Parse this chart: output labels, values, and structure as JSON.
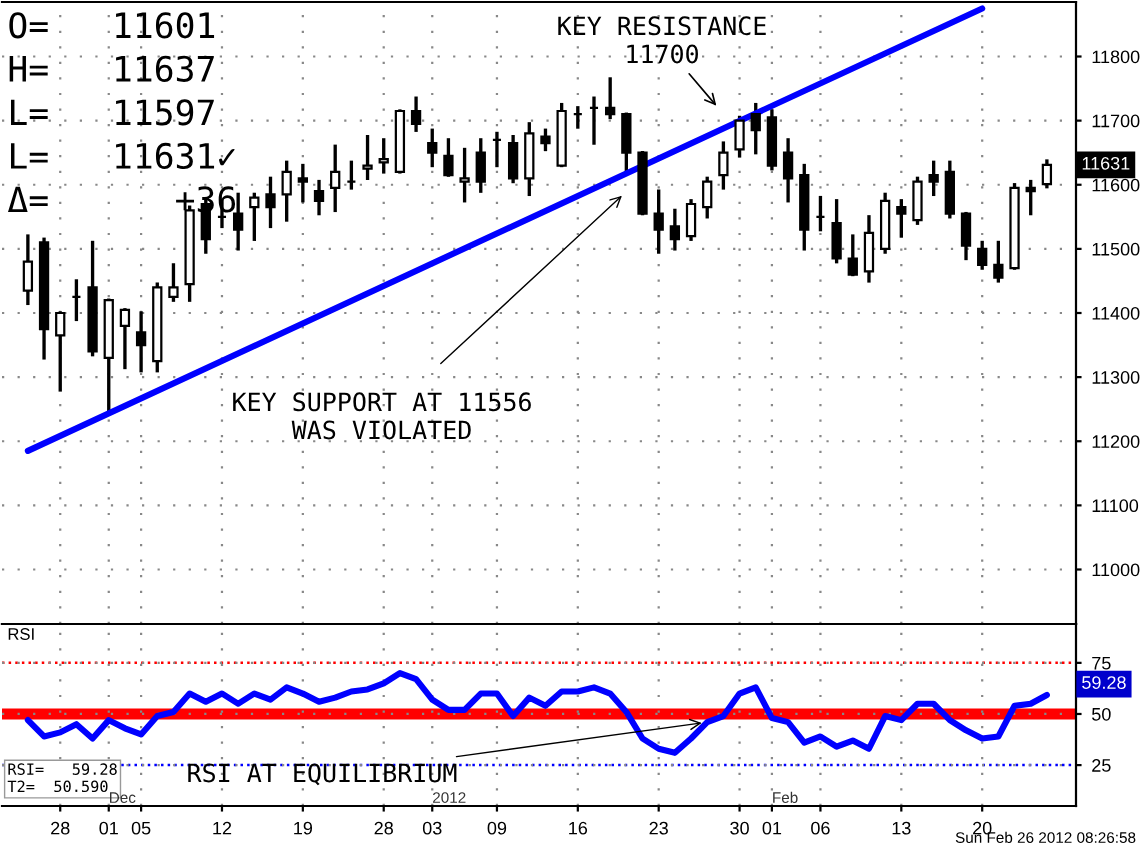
{
  "chart_data": [
    {
      "type": "candlestick",
      "tick_labels": "y",
      "grid": true,
      "legend": false,
      "color": "#000000",
      "categories": [
        null,
        null,
        "28",
        null,
        null,
        "01",
        null,
        "05",
        null,
        null,
        null,
        null,
        "12",
        null,
        null,
        null,
        null,
        "19",
        null,
        null,
        null,
        null,
        "28",
        null,
        null,
        "03",
        null,
        null,
        null,
        "09",
        null,
        null,
        null,
        null,
        "16",
        null,
        null,
        null,
        null,
        "23",
        null,
        null,
        null,
        null,
        "30",
        null,
        "01",
        null,
        null,
        "06",
        null,
        null,
        null,
        null,
        "13",
        null,
        null,
        null,
        null,
        "20",
        null,
        null,
        null,
        null
      ],
      "ohlc": [
        [
          11435,
          11520,
          11415,
          11480
        ],
        [
          11510,
          11515,
          11330,
          11375
        ],
        [
          11365,
          11400,
          11280,
          11400
        ],
        [
          11425,
          11450,
          11390,
          11425
        ],
        [
          11440,
          11510,
          11335,
          11340
        ],
        [
          11330,
          11420,
          11245,
          11420
        ],
        [
          11380,
          11405,
          11315,
          11405
        ],
        [
          11370,
          11400,
          11310,
          11350
        ],
        [
          11325,
          11445,
          11310,
          11440
        ],
        [
          11425,
          11475,
          11420,
          11440
        ],
        [
          11445,
          11565,
          11420,
          11560
        ],
        [
          11570,
          11575,
          11495,
          11515
        ],
        [
          11550,
          11575,
          11535,
          11550
        ],
        [
          11555,
          11585,
          11500,
          11530
        ],
        [
          11565,
          11585,
          11515,
          11580
        ],
        [
          11585,
          11610,
          11535,
          11565
        ],
        [
          11585,
          11635,
          11545,
          11620
        ],
        [
          11610,
          11630,
          11575,
          11605
        ],
        [
          11590,
          11605,
          11555,
          11575
        ],
        [
          11595,
          11660,
          11560,
          11620
        ],
        [
          11605,
          11635,
          11595,
          11605
        ],
        [
          11625,
          11675,
          11610,
          11630
        ],
        [
          11635,
          11670,
          11620,
          11640
        ],
        [
          11620,
          11715,
          11620,
          11715
        ],
        [
          11715,
          11735,
          11685,
          11695
        ],
        [
          11665,
          11685,
          11630,
          11650
        ],
        [
          11645,
          11670,
          11615,
          11615
        ],
        [
          11605,
          11655,
          11575,
          11610
        ],
        [
          11650,
          11670,
          11590,
          11605
        ],
        [
          11670,
          11680,
          11630,
          11670
        ],
        [
          11665,
          11675,
          11605,
          11610
        ],
        [
          11610,
          11695,
          11585,
          11680
        ],
        [
          11675,
          11685,
          11655,
          11665
        ],
        [
          11630,
          11725,
          11630,
          11715
        ],
        [
          11710,
          11720,
          11690,
          11710
        ],
        [
          11720,
          11735,
          11665,
          11720
        ],
        [
          11720,
          11765,
          11705,
          11710
        ],
        [
          11710,
          11710,
          11620,
          11650
        ],
        [
          11650,
          11650,
          11555,
          11555
        ],
        [
          11555,
          11590,
          11495,
          11530
        ],
        [
          11535,
          11560,
          11500,
          11515
        ],
        [
          11520,
          11575,
          11515,
          11570
        ],
        [
          11565,
          11610,
          11550,
          11605
        ],
        [
          11615,
          11665,
          11595,
          11650
        ],
        [
          11655,
          11705,
          11645,
          11700
        ],
        [
          11710,
          11725,
          11650,
          11685
        ],
        [
          11705,
          11715,
          11625,
          11630
        ],
        [
          11650,
          11670,
          11575,
          11610
        ],
        [
          11615,
          11630,
          11500,
          11530
        ],
        [
          11550,
          11580,
          11530,
          11550
        ],
        [
          11540,
          11575,
          11480,
          11485
        ],
        [
          11485,
          11520,
          11460,
          11460
        ],
        [
          11465,
          11550,
          11450,
          11525
        ],
        [
          11500,
          11585,
          11495,
          11575
        ],
        [
          11565,
          11575,
          11520,
          11555
        ],
        [
          11545,
          11610,
          11540,
          11605
        ],
        [
          11615,
          11635,
          11585,
          11605
        ],
        [
          11620,
          11635,
          11550,
          11555
        ],
        [
          11555,
          11555,
          11485,
          11505
        ],
        [
          11500,
          11510,
          11470,
          11475
        ],
        [
          11475,
          11510,
          11450,
          11455
        ],
        [
          11470,
          11600,
          11470,
          11595
        ],
        [
          11595,
          11605,
          11555,
          11590
        ],
        [
          11601,
          11637,
          11597,
          11631
        ]
      ],
      "series": [
        {
          "type": "line",
          "color": "#0000ff",
          "values": [
            11185,
            null,
            null,
            null,
            null,
            null,
            null,
            null,
            null,
            null,
            null,
            null,
            null,
            null,
            null,
            null,
            null,
            null,
            null,
            null,
            null,
            null,
            null,
            null,
            null,
            null,
            null,
            null,
            null,
            null,
            null,
            null,
            null,
            null,
            null,
            null,
            null,
            null,
            null,
            null,
            null,
            null,
            null,
            null,
            null,
            null,
            null,
            null,
            null,
            null,
            null,
            null,
            null,
            null,
            null,
            null,
            null,
            null,
            null,
            11875,
            null,
            null,
            null,
            null
          ]
        }
      ],
      "ylim": [
        10915,
        11885
      ],
      "yticks": [
        11000,
        11100,
        11200,
        11300,
        11400,
        11500,
        11600,
        11700,
        11800
      ],
      "annotations": [
        "O=   11601",
        "H=   11637",
        "L=   11597",
        "L=   11631✓",
        "Δ=      +36",
        "KEY RESISTANCE\n11700",
        "KEY SUPPORT AT 11556\nWAS VIOLATED",
        "11631"
      ]
    },
    {
      "type": "line",
      "grid": true,
      "legend": false,
      "categories": [
        null,
        null,
        "28",
        null,
        null,
        "01",
        null,
        "05",
        null,
        null,
        null,
        null,
        "12",
        null,
        null,
        null,
        null,
        "19",
        null,
        null,
        null,
        null,
        "28",
        null,
        null,
        "03",
        null,
        null,
        null,
        "09",
        null,
        null,
        null,
        null,
        "16",
        null,
        null,
        null,
        null,
        "23",
        null,
        null,
        null,
        null,
        "30",
        null,
        "01",
        null,
        null,
        "06",
        null,
        null,
        null,
        null,
        "13",
        null,
        null,
        null,
        null,
        "20",
        null,
        null,
        null,
        null
      ],
      "series": [
        {
          "color": "#0000ff",
          "values": [
            47,
            39,
            41,
            45,
            38,
            47,
            43,
            40,
            49,
            51,
            60,
            56,
            60,
            55,
            60,
            57,
            63,
            60,
            56,
            58,
            61,
            62,
            65,
            70,
            67,
            57,
            52,
            52,
            60,
            60,
            49,
            58,
            54,
            61,
            61,
            63,
            60,
            51,
            38,
            33,
            31,
            38,
            46,
            49,
            60,
            63,
            48,
            46,
            36,
            39,
            34,
            37,
            33,
            49,
            47,
            55,
            55,
            47,
            42,
            38,
            39,
            54,
            55,
            59.28
          ]
        }
      ],
      "ylim": [
        5,
        94
      ],
      "yticks": [
        25,
        50,
        75
      ],
      "ref_lines": [
        {
          "axis": "y",
          "value": 75,
          "color": "#ff0000",
          "line_style": "dotted"
        },
        {
          "axis": "y",
          "value": 50,
          "color": "#ff0000",
          "line_style": "solid"
        },
        {
          "axis": "y",
          "value": 25,
          "color": "#0000ff",
          "line_style": "dotted"
        }
      ],
      "annotations": [
        "RSI",
        {
          "text": "RSI AT EQUILIBRIUM",
          "y": 46
        },
        "RSI=   59.28",
        "T2=  50.590",
        "59.28",
        "Dec",
        "2012",
        "Feb",
        "Sun Feb 26 2012 08:26:58"
      ]
    }
  ]
}
